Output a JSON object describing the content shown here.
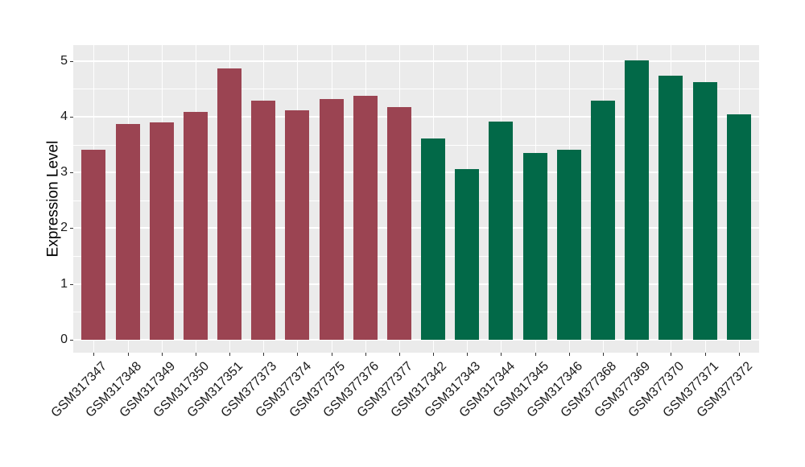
{
  "figure": {
    "background_color": "#FFFFFF",
    "panel_background_color": "#EBEBEB",
    "gridline_color": "#FFFFFF",
    "axis_text_color": "#1a1a1a",
    "tick_mark_color": "#333333"
  },
  "chart_data": {
    "type": "bar",
    "title": "",
    "xlabel": "",
    "ylabel": "Expression Level",
    "ylim": [
      -0.25,
      5.28
    ],
    "yticks": [
      0,
      1,
      2,
      3,
      4,
      5
    ],
    "minor_yticks": [
      0.5,
      1.5,
      2.5,
      3.5,
      4.5
    ],
    "grid": "on",
    "legend": "none",
    "x_label_rotation_deg": 45,
    "categories": [
      "GSM317347",
      "GSM317348",
      "GSM317349",
      "GSM317350",
      "GSM317351",
      "GSM377373",
      "GSM377374",
      "GSM377375",
      "GSM377376",
      "GSM377377",
      "GSM317342",
      "GSM317343",
      "GSM317344",
      "GSM317345",
      "GSM317346",
      "GSM377368",
      "GSM377369",
      "GSM377370",
      "GSM377371",
      "GSM377372"
    ],
    "values": [
      3.4,
      3.87,
      3.89,
      4.08,
      4.86,
      4.28,
      4.11,
      4.31,
      4.38,
      4.17,
      3.61,
      3.06,
      3.91,
      3.35,
      3.41,
      4.29,
      5.01,
      4.73,
      4.62,
      4.04
    ],
    "bar_groups": [
      "group1",
      "group1",
      "group1",
      "group1",
      "group1",
      "group1",
      "group1",
      "group1",
      "group1",
      "group1",
      "group2",
      "group2",
      "group2",
      "group2",
      "group2",
      "group2",
      "group2",
      "group2",
      "group2",
      "group2"
    ],
    "group_colors": {
      "group1": "#9B4452",
      "group2": "#026948"
    }
  }
}
